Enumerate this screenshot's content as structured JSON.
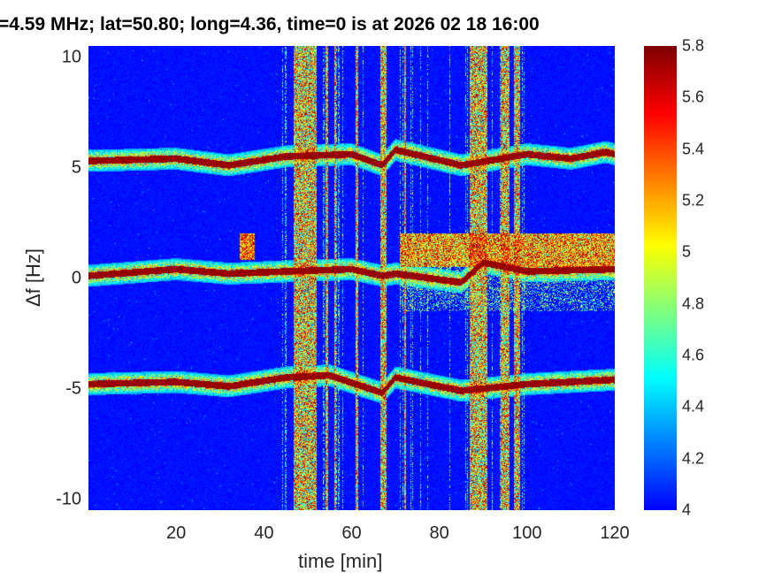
{
  "chart_data": {
    "type": "heatmap",
    "title": "=4.59 MHz;  lat=50.80; long=4.36, time=0 is at 2026 02 18 16:00",
    "xlabel": "time [min]",
    "ylabel": "Δf [Hz]",
    "xlim": [
      0,
      120
    ],
    "ylim": [
      -10.5,
      10.5
    ],
    "xticks": [
      20,
      40,
      60,
      80,
      100,
      120
    ],
    "yticks": [
      10,
      5,
      0,
      -5,
      -10
    ],
    "ytick_labels": [
      "10",
      "5",
      "0",
      "-5",
      "-10"
    ],
    "colormap": "jet",
    "clim": [
      4,
      5.8
    ],
    "colorbar_ticks": [
      "5.8",
      "5.6",
      "5.4",
      "5.2",
      "5",
      "4.8",
      "4.6",
      "4.4",
      "4.2",
      "4"
    ],
    "traces_hz": [
      {
        "center": 5.3,
        "points": [
          [
            0,
            5.3
          ],
          [
            20,
            5.4
          ],
          [
            32,
            5.1
          ],
          [
            45,
            5.5
          ],
          [
            60,
            5.6
          ],
          [
            67,
            5.1
          ],
          [
            70,
            5.8
          ],
          [
            85,
            5.1
          ],
          [
            100,
            5.6
          ],
          [
            110,
            5.4
          ],
          [
            118,
            5.7
          ],
          [
            120,
            5.6
          ]
        ]
      },
      {
        "center": 0.2,
        "points": [
          [
            0,
            0.1
          ],
          [
            20,
            0.4
          ],
          [
            32,
            0.2
          ],
          [
            45,
            0.3
          ],
          [
            60,
            0.4
          ],
          [
            67,
            0.1
          ],
          [
            70,
            0.2
          ],
          [
            85,
            -0.2
          ],
          [
            90,
            0.7
          ],
          [
            100,
            0.3
          ],
          [
            120,
            0.4
          ]
        ]
      },
      {
        "center": -4.8,
        "points": [
          [
            0,
            -4.8
          ],
          [
            20,
            -4.7
          ],
          [
            32,
            -4.9
          ],
          [
            45,
            -4.5
          ],
          [
            55,
            -4.4
          ],
          [
            67,
            -5.2
          ],
          [
            70,
            -4.5
          ],
          [
            85,
            -5.1
          ],
          [
            100,
            -4.8
          ],
          [
            120,
            -4.6
          ]
        ]
      }
    ],
    "interference_bands_min": [
      [
        46.8,
        52
      ],
      [
        54,
        54.6
      ],
      [
        56,
        56.5
      ],
      [
        61,
        61.5
      ],
      [
        66.5,
        68
      ],
      [
        72,
        72.5
      ],
      [
        87,
        91
      ],
      [
        94,
        96
      ],
      [
        97,
        98.4
      ]
    ],
    "broadband_region": {
      "time": [
        71,
        120
      ],
      "df": [
        0.5,
        2.0
      ]
    },
    "blob": {
      "time": [
        34.5,
        38
      ],
      "df": [
        0.8,
        2.0
      ]
    },
    "background_level": 4.0
  }
}
